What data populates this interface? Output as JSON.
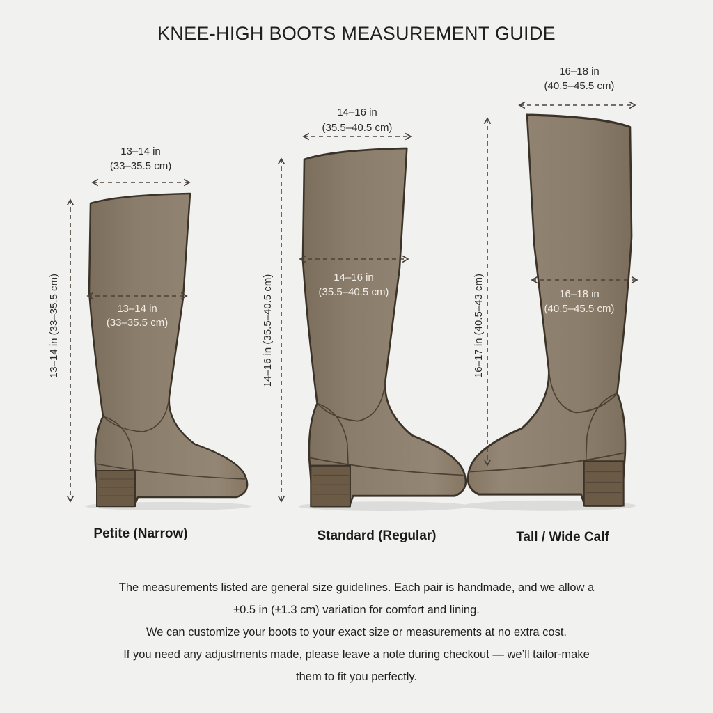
{
  "title": "KNEE-HIGH BOOTS MEASUREMENT GUIDE",
  "colors": {
    "boot": "#8b7d6b",
    "boot_shade": "#7a6c5a",
    "outline": "#3b3328",
    "background": "#f1f1f0",
    "dimension_line": "#4a4238"
  },
  "boots": [
    {
      "name": "Petite (Narrow)",
      "top_in": "13–14 in",
      "top_cm": "(33–35.5 cm)",
      "calf_in": "13–14 in",
      "calf_cm": "(33–35.5 cm)",
      "height": "13–14 in (33–35.5 cm)"
    },
    {
      "name": "Standard (Regular)",
      "top_in": "14–16 in",
      "top_cm": "(35.5–40.5 cm)",
      "calf_in": "14–16 in",
      "calf_cm": "(35.5–40.5 cm)",
      "height": "14–16 in (35.5–40.5 cm)"
    },
    {
      "name": "Tall / Wide Calf",
      "top_in": "16–18 in",
      "top_cm": "(40.5–45.5 cm)",
      "calf_in": "16–18 in",
      "calf_cm": "(40.5–45.5 cm)",
      "height": "16–17 in (40.5–43 cm)"
    }
  ],
  "notes": [
    "The measurements listed are general size guidelines. Each pair is handmade, and we allow a",
    "±0.5 in (±1.3 cm) variation for comfort and lining.",
    "We can customize your boots to your exact size or measurements at no extra cost.",
    "If you need any adjustments made, please leave a note during checkout — we’ll tailor-make",
    "them to fit you perfectly."
  ]
}
